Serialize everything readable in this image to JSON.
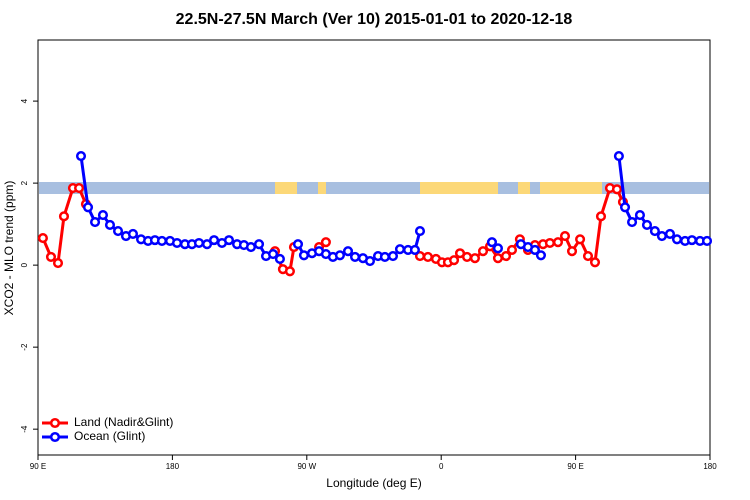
{
  "chart_data": {
    "type": "line",
    "title": "22.5N-27.5N March (Ver 10)   2015-01-01 to 2020-12-18",
    "x_label": "Longitude (deg E)",
    "y_label": "XCO2 - MLO trend (ppm)",
    "xlim": [
      90,
      540
    ],
    "ylim": [
      -4.63,
      5.49
    ],
    "xticks": [
      {
        "value": 90,
        "label": "90 E"
      },
      180,
      {
        "value": 270,
        "label": "90 W"
      },
      {
        "value": 360,
        "label": "0"
      },
      {
        "value": 450,
        "label": "90 E"
      },
      {
        "value": 540,
        "label": "180"
      }
    ],
    "yticks": [
      -4,
      -2,
      0,
      2,
      4
    ],
    "legend": "bottom-left",
    "series": [
      {
        "name": "Land (Nadir&Glint)",
        "color": "#ff0000",
        "x": [
          93.3,
          98.7,
          103.4,
          107.4,
          113.4,
          117.5,
          122.1,
          null,
          248.7,
          254.0,
          258.7,
          261.4,
          null,
          278.2,
          282.8,
          null,
          345.8,
          351.1,
          356.5,
          360.5,
          364.5,
          368.6,
          372.6,
          377.3,
          382.6,
          388.0,
          392.7,
          398.0,
          403.4,
          407.4,
          412.7,
          418.1,
          422.8,
          428.2,
          432.8,
          438.2,
          442.9,
          447.6,
          453.0,
          458.3,
          463.0,
          467.0,
          473.0,
          477.7,
          481.7
        ],
        "values": [
          0.66,
          0.2,
          0.05,
          1.19,
          1.88,
          1.88,
          1.49,
          null,
          0.34,
          -0.1,
          -0.15,
          0.44,
          null,
          0.44,
          0.56,
          null,
          0.22,
          0.2,
          0.15,
          0.07,
          0.07,
          0.12,
          0.29,
          0.2,
          0.17,
          0.34,
          0.46,
          0.17,
          0.22,
          0.37,
          0.63,
          0.37,
          0.49,
          0.51,
          0.54,
          0.56,
          0.71,
          0.34,
          0.63,
          0.22,
          0.07,
          1.19,
          1.88,
          1.85,
          1.54
        ]
      },
      {
        "name": "Ocean (Glint)",
        "color": "#0000ff",
        "x": [
          118.8,
          123.5,
          128.2,
          133.5,
          138.2,
          143.6,
          148.9,
          153.6,
          159.0,
          163.7,
          168.3,
          173.0,
          178.4,
          183.1,
          188.4,
          193.1,
          197.8,
          203.2,
          207.9,
          213.2,
          217.9,
          223.3,
          227.9,
          232.6,
          238.0,
          242.7,
          247.4,
          252.0,
          null,
          264.1,
          268.1,
          273.5,
          278.2,
          282.8,
          287.5,
          292.2,
          297.6,
          302.3,
          307.6,
          312.3,
          317.7,
          322.3,
          327.7,
          332.4,
          337.8,
          342.4,
          345.8,
          null,
          394.0,
          398.0,
          null,
          413.4,
          418.1,
          422.8,
          426.8,
          null,
          479.0,
          483.1,
          487.8,
          493.1,
          497.8,
          503.1,
          507.8,
          513.2,
          517.9,
          523.3,
          527.9,
          533.3,
          538.0
        ],
        "values": [
          2.66,
          1.41,
          1.05,
          1.22,
          0.98,
          0.83,
          0.71,
          0.76,
          0.63,
          0.59,
          0.61,
          0.59,
          0.59,
          0.54,
          0.51,
          0.51,
          0.54,
          0.51,
          0.61,
          0.54,
          0.61,
          0.51,
          0.49,
          0.44,
          0.51,
          0.22,
          0.27,
          0.15,
          null,
          0.51,
          0.24,
          0.29,
          0.34,
          0.27,
          0.2,
          0.24,
          0.34,
          0.2,
          0.17,
          0.1,
          0.22,
          0.2,
          0.22,
          0.39,
          0.37,
          0.37,
          0.83,
          null,
          0.56,
          0.41,
          null,
          0.51,
          0.44,
          0.37,
          0.24,
          null,
          2.66,
          1.41,
          1.05,
          1.22,
          0.98,
          0.83,
          0.71,
          0.76,
          0.63,
          0.59,
          0.61,
          0.59,
          0.59
        ]
      }
    ]
  }
}
